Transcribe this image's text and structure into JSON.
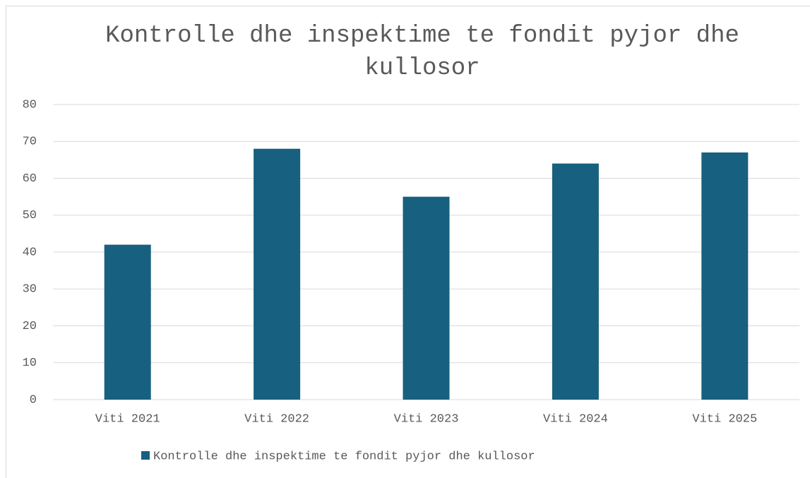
{
  "chart_data": {
    "type": "bar",
    "title": "Kontrolle dhe inspektime te fondit pyjor dhe kullosor",
    "categories": [
      "Viti 2021",
      "Viti 2022",
      "Viti 2023",
      "Viti 2024",
      "Viti 2025"
    ],
    "series": [
      {
        "name": "Kontrolle dhe inspektime te fondit pyjor dhe kullosor",
        "color": "#17607f",
        "values": [
          42,
          68,
          55,
          64,
          67
        ]
      }
    ],
    "ylim": [
      0,
      80
    ],
    "yticks": [
      0,
      10,
      20,
      30,
      40,
      50,
      60,
      70,
      80
    ],
    "grid": true,
    "legend": "bottom"
  }
}
